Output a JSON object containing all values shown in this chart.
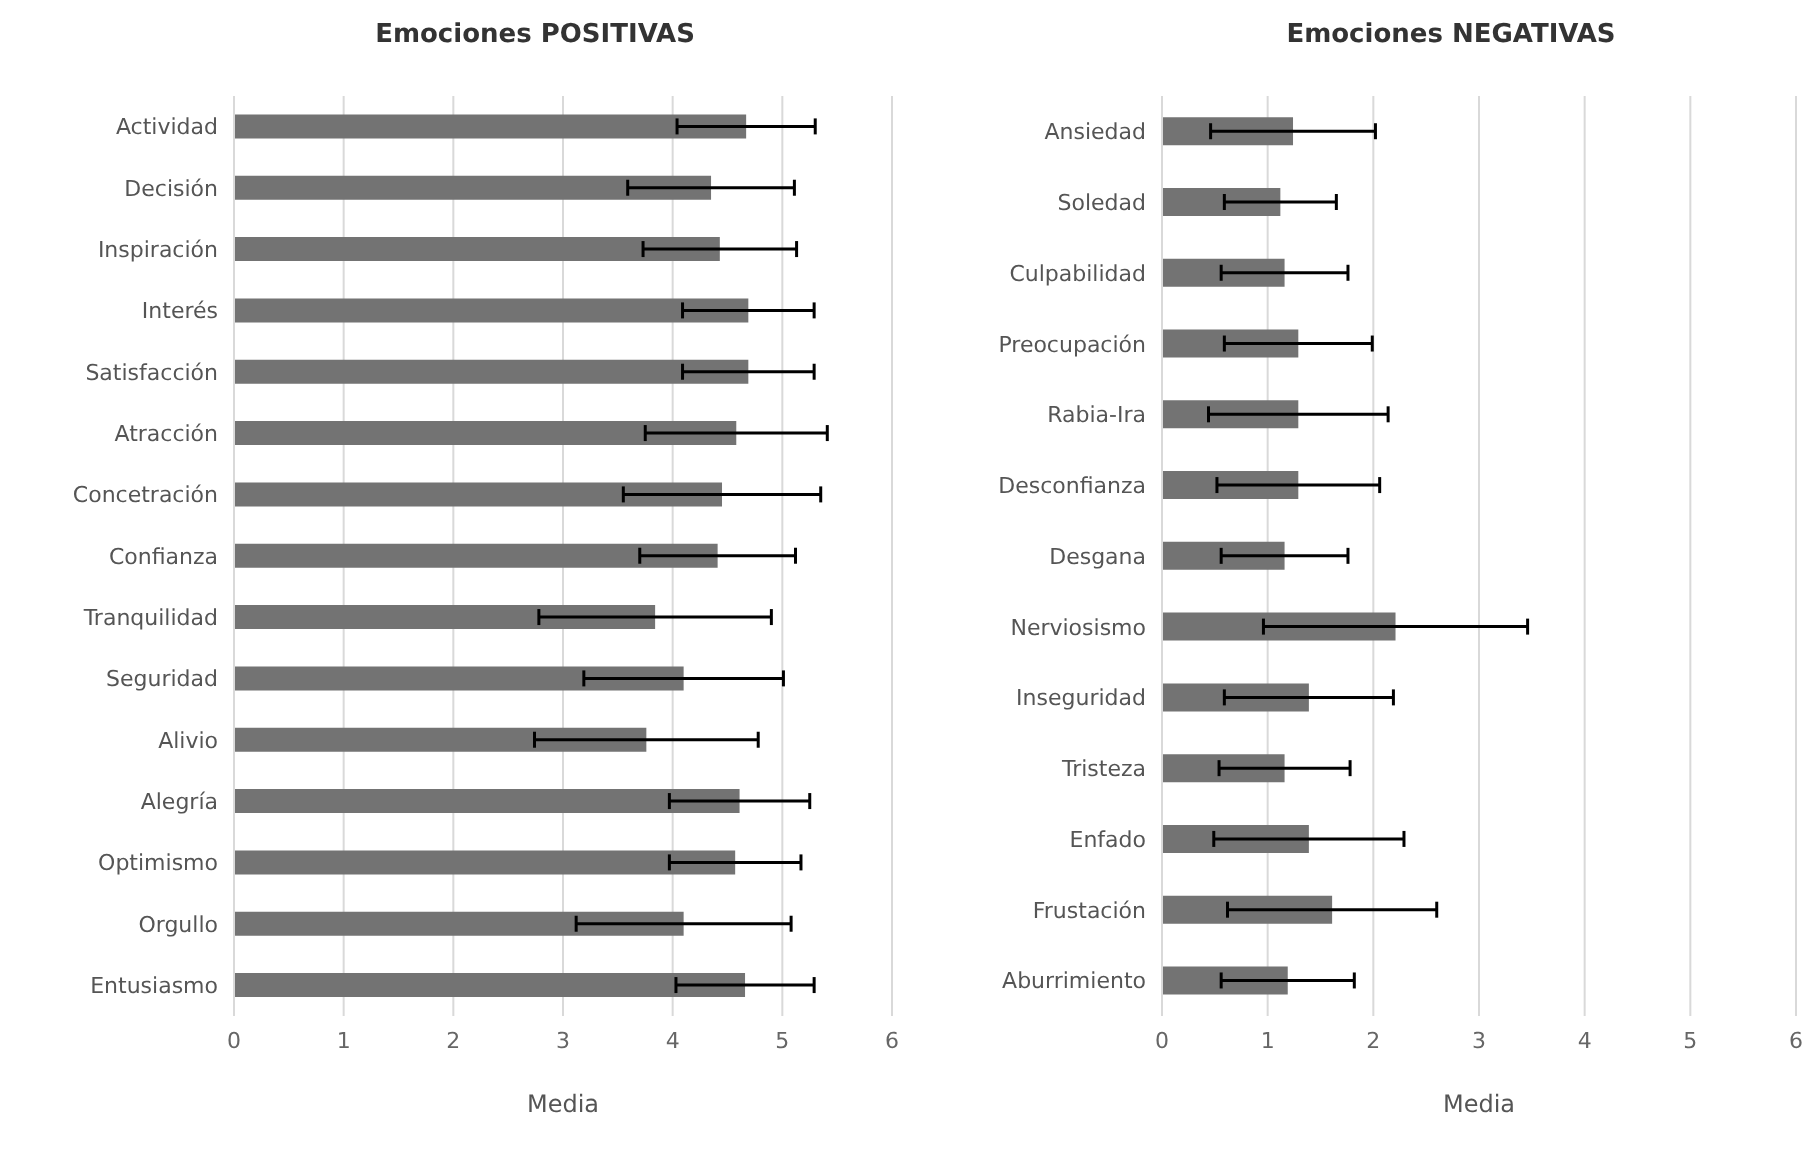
{
  "chart_data": [
    {
      "type": "bar",
      "orientation": "horizontal",
      "title": "Emociones POSITIVAS",
      "xlabel": "Media",
      "color": "#737373",
      "grid": "x",
      "xlim": [
        0,
        6
      ],
      "xticks": [
        0,
        1,
        2,
        3,
        4,
        5,
        6
      ],
      "categories": [
        "Actividad",
        "Decisión",
        "Inspiración",
        "Interés",
        "Satisfacción",
        "Atracción",
        "Concetración",
        "Confianza",
        "Tranquilidad",
        "Seguridad",
        "Alivio",
        "Alegría",
        "Optimismo",
        "Orgullo",
        "Entusiasmo"
      ],
      "values": [
        4.67,
        4.35,
        4.43,
        4.69,
        4.69,
        4.58,
        4.45,
        4.41,
        3.84,
        4.1,
        3.76,
        4.61,
        4.57,
        4.1,
        4.66
      ],
      "errors": [
        0.63,
        0.76,
        0.7,
        0.6,
        0.6,
        0.83,
        0.9,
        0.71,
        1.06,
        0.91,
        1.02,
        0.64,
        0.6,
        0.98,
        0.63
      ]
    },
    {
      "type": "bar",
      "orientation": "horizontal",
      "title": "Emociones NEGATIVAS",
      "xlabel": "Media",
      "color": "#737373",
      "grid": "x",
      "xlim": [
        0,
        6
      ],
      "xticks": [
        0,
        1,
        2,
        3,
        4,
        5,
        6
      ],
      "categories": [
        "Ansiedad",
        "Soledad",
        "Culpabilidad",
        "Preocupación",
        "Rabia-Ira",
        "Desconfianza",
        "Desgana",
        "Nerviosismo",
        "Inseguridad",
        "Tristeza",
        "Enfado",
        "Frustación",
        "Aburrimiento"
      ],
      "values": [
        1.24,
        1.12,
        1.16,
        1.29,
        1.29,
        1.29,
        1.16,
        2.21,
        1.39,
        1.16,
        1.39,
        1.61,
        1.19
      ],
      "errors": [
        0.78,
        0.53,
        0.6,
        0.7,
        0.85,
        0.77,
        0.6,
        1.25,
        0.8,
        0.62,
        0.9,
        0.99,
        0.63
      ]
    }
  ]
}
